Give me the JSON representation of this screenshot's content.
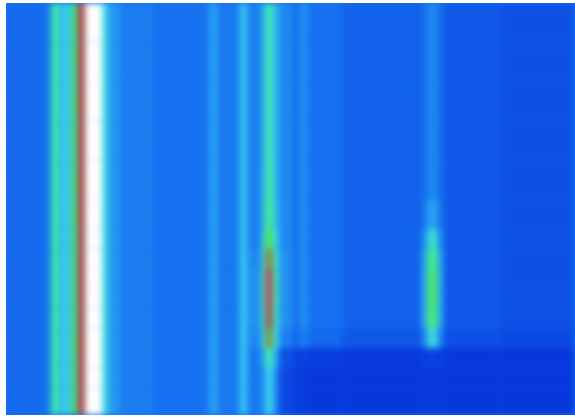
{
  "chart_data": {
    "type": "heatmap",
    "tick_labels": false,
    "xlim": [
      0,
      575
    ],
    "ylim": [
      0,
      418
    ],
    "x_edges": [
      0,
      40,
      46,
      54,
      57,
      63,
      66,
      72,
      80,
      97,
      103,
      115,
      150,
      200,
      206,
      214,
      236,
      244,
      258,
      262,
      270,
      276,
      290,
      296,
      305,
      340,
      420,
      426,
      436,
      442,
      500,
      575
    ],
    "y_edges": [
      0,
      40,
      80,
      120,
      160,
      200,
      230,
      250,
      270,
      290,
      310,
      330,
      350,
      370,
      390,
      418
    ],
    "cells": [
      [
        20,
        25,
        62,
        35,
        50,
        40,
        68,
        88,
        100,
        52,
        32,
        25,
        22,
        24,
        35,
        24,
        45,
        26,
        40,
        60,
        40,
        28,
        20,
        30,
        22,
        18,
        22,
        28,
        22,
        16,
        14
      ],
      [
        20,
        25,
        62,
        35,
        50,
        40,
        68,
        88,
        100,
        52,
        32,
        25,
        22,
        24,
        35,
        24,
        45,
        26,
        40,
        60,
        40,
        28,
        20,
        30,
        22,
        18,
        22,
        28,
        22,
        16,
        14
      ],
      [
        20,
        25,
        62,
        35,
        50,
        40,
        68,
        88,
        100,
        52,
        32,
        25,
        22,
        24,
        35,
        24,
        45,
        26,
        40,
        60,
        40,
        28,
        20,
        30,
        22,
        18,
        22,
        28,
        22,
        16,
        14
      ],
      [
        20,
        25,
        62,
        35,
        50,
        40,
        68,
        88,
        100,
        52,
        32,
        25,
        22,
        24,
        35,
        24,
        45,
        26,
        40,
        60,
        40,
        28,
        20,
        30,
        22,
        18,
        22,
        28,
        22,
        16,
        14
      ],
      [
        20,
        25,
        62,
        35,
        50,
        40,
        68,
        88,
        100,
        52,
        32,
        25,
        22,
        24,
        35,
        24,
        45,
        26,
        40,
        62,
        40,
        28,
        20,
        30,
        22,
        18,
        22,
        28,
        22,
        16,
        14
      ],
      [
        20,
        25,
        62,
        35,
        50,
        40,
        68,
        88,
        100,
        52,
        32,
        25,
        22,
        24,
        35,
        24,
        45,
        26,
        42,
        65,
        42,
        28,
        20,
        30,
        22,
        18,
        24,
        35,
        24,
        16,
        14
      ],
      [
        20,
        25,
        62,
        35,
        50,
        40,
        68,
        88,
        100,
        52,
        32,
        25,
        22,
        24,
        35,
        24,
        45,
        26,
        48,
        72,
        48,
        28,
        20,
        30,
        22,
        18,
        30,
        55,
        30,
        16,
        14
      ],
      [
        20,
        25,
        62,
        35,
        50,
        40,
        68,
        88,
        100,
        52,
        32,
        25,
        22,
        24,
        35,
        24,
        45,
        28,
        55,
        82,
        55,
        30,
        20,
        30,
        22,
        18,
        36,
        66,
        36,
        16,
        14
      ],
      [
        20,
        25,
        62,
        35,
        50,
        40,
        68,
        88,
        100,
        52,
        32,
        25,
        22,
        24,
        35,
        24,
        45,
        30,
        60,
        90,
        60,
        30,
        20,
        30,
        22,
        18,
        38,
        70,
        38,
        16,
        14
      ],
      [
        20,
        25,
        62,
        35,
        50,
        40,
        68,
        88,
        100,
        52,
        32,
        25,
        22,
        24,
        35,
        24,
        45,
        30,
        60,
        90,
        60,
        30,
        20,
        30,
        22,
        18,
        38,
        70,
        38,
        16,
        14
      ],
      [
        20,
        25,
        62,
        35,
        50,
        40,
        68,
        88,
        100,
        52,
        32,
        25,
        22,
        24,
        35,
        24,
        45,
        30,
        58,
        86,
        58,
        30,
        20,
        30,
        22,
        18,
        38,
        68,
        38,
        16,
        14
      ],
      [
        20,
        25,
        62,
        35,
        50,
        40,
        68,
        88,
        100,
        52,
        32,
        25,
        22,
        24,
        35,
        24,
        45,
        28,
        50,
        80,
        50,
        26,
        18,
        26,
        20,
        16,
        28,
        52,
        28,
        14,
        12
      ],
      [
        20,
        25,
        62,
        35,
        50,
        40,
        68,
        88,
        100,
        52,
        32,
        25,
        22,
        24,
        35,
        24,
        45,
        24,
        38,
        60,
        36,
        14,
        10,
        10,
        9,
        8,
        9,
        10,
        9,
        8,
        8
      ],
      [
        20,
        25,
        62,
        35,
        50,
        40,
        68,
        88,
        100,
        52,
        32,
        25,
        22,
        24,
        35,
        24,
        45,
        24,
        30,
        48,
        28,
        12,
        9,
        9,
        8,
        8,
        8,
        8,
        8,
        8,
        8
      ],
      [
        20,
        25,
        62,
        35,
        50,
        40,
        68,
        88,
        100,
        52,
        32,
        25,
        22,
        24,
        35,
        24,
        45,
        24,
        30,
        48,
        28,
        12,
        9,
        9,
        8,
        8,
        8,
        8,
        8,
        8,
        8
      ]
    ]
  }
}
